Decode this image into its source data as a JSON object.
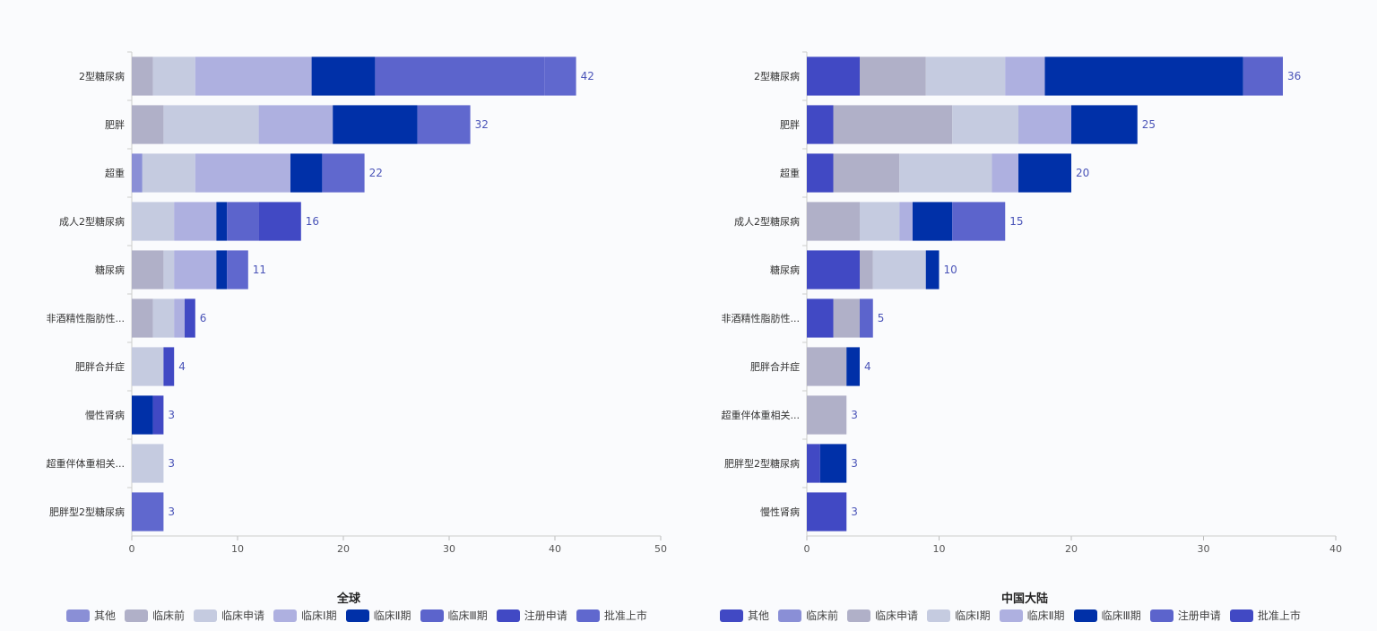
{
  "chart_data": [
    {
      "type": "bar",
      "orientation": "horizontal",
      "stacked": true,
      "title": "全球",
      "categories": [
        "2型糖尿病",
        "肥胖",
        "超重",
        "成人2型糖尿病",
        "糖尿病",
        "非酒精性脂肪性...",
        "肥胖合并症",
        "慢性肾病",
        "超重伴体重相关...",
        "肥胖型2型糖尿病"
      ],
      "xlim": [
        0,
        50
      ],
      "xticks": [
        0,
        10,
        20,
        30,
        40,
        50
      ],
      "totals": [
        42,
        32,
        22,
        16,
        11,
        6,
        4,
        3,
        3,
        3
      ],
      "legend_position": "bottom",
      "series": [
        {
          "name": "其他",
          "color": "#8a8fd6",
          "values": [
            0,
            0,
            1,
            0,
            0,
            0,
            0,
            0,
            0,
            0
          ]
        },
        {
          "name": "临床前",
          "color": "#b0b0c8",
          "values": [
            2,
            3,
            0,
            0,
            3,
            2,
            0,
            0,
            0,
            0
          ]
        },
        {
          "name": "临床申请",
          "color": "#c5cbe0",
          "values": [
            4,
            9,
            5,
            4,
            1,
            2,
            3,
            0,
            3,
            0
          ]
        },
        {
          "name": "临床Ⅰ期",
          "color": "#aeb0e0",
          "values": [
            11,
            7,
            9,
            4,
            4,
            1,
            0,
            0,
            0,
            0
          ]
        },
        {
          "name": "临床Ⅱ期",
          "color": "#0030a8",
          "values": [
            6,
            8,
            3,
            1,
            1,
            0,
            0,
            2,
            0,
            0
          ]
        },
        {
          "name": "临床Ⅲ期",
          "color": "#5c64cc",
          "values": [
            16,
            0,
            0,
            3,
            0,
            0,
            0,
            0,
            0,
            0
          ]
        },
        {
          "name": "注册申请",
          "color": "#4149c4",
          "values": [
            0,
            0,
            0,
            4,
            0,
            1,
            1,
            1,
            0,
            0
          ]
        },
        {
          "name": "批准上市",
          "color": "#6068ce",
          "values": [
            3,
            5,
            4,
            0,
            2,
            0,
            0,
            0,
            0,
            3
          ]
        }
      ]
    },
    {
      "type": "bar",
      "orientation": "horizontal",
      "stacked": true,
      "title": "中国大陆",
      "categories": [
        "2型糖尿病",
        "肥胖",
        "超重",
        "成人2型糖尿病",
        "糖尿病",
        "非酒精性脂肪性...",
        "肥胖合并症",
        "超重伴体重相关...",
        "肥胖型2型糖尿病",
        "慢性肾病"
      ],
      "xlim": [
        0,
        40
      ],
      "xticks": [
        0,
        10,
        20,
        30,
        40
      ],
      "totals": [
        36,
        25,
        20,
        15,
        10,
        5,
        4,
        3,
        3,
        3
      ],
      "legend_position": "bottom",
      "series": [
        {
          "name": "其他",
          "color": "#4149c4",
          "values": [
            4,
            2,
            2,
            0,
            4,
            2,
            0,
            0,
            1,
            3
          ]
        },
        {
          "name": "临床前",
          "color": "#8a8fd6",
          "values": [
            0,
            0,
            0,
            0,
            0,
            0,
            0,
            0,
            0,
            0
          ]
        },
        {
          "name": "临床申请",
          "color": "#b0b0c8",
          "values": [
            5,
            9,
            5,
            4,
            1,
            2,
            3,
            3,
            0,
            0
          ]
        },
        {
          "name": "临床Ⅰ期",
          "color": "#c5cbe0",
          "values": [
            6,
            5,
            7,
            3,
            4,
            0,
            0,
            0,
            0,
            0
          ]
        },
        {
          "name": "临床Ⅱ期",
          "color": "#aeb0e0",
          "values": [
            3,
            4,
            2,
            1,
            0,
            0,
            0,
            0,
            0,
            0
          ]
        },
        {
          "name": "临床Ⅲ期",
          "color": "#0030a8",
          "values": [
            15,
            5,
            4,
            3,
            1,
            0,
            1,
            0,
            2,
            0
          ]
        },
        {
          "name": "注册申请",
          "color": "#5c64cc",
          "values": [
            3,
            0,
            0,
            4,
            0,
            1,
            0,
            0,
            0,
            0
          ]
        },
        {
          "name": "批准上市",
          "color": "#4149c4",
          "values": [
            0,
            0,
            0,
            0,
            0,
            0,
            0,
            0,
            0,
            0
          ]
        }
      ]
    }
  ]
}
